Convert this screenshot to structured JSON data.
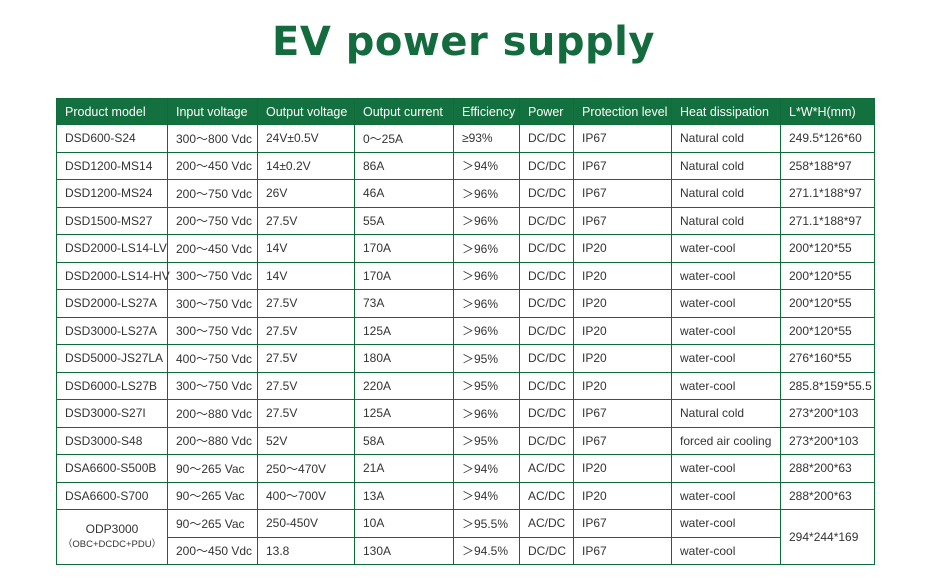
{
  "title": "EV power supply",
  "table": {
    "headers": [
      "Product model",
      "Input voltage",
      "Output voltage",
      "Output current",
      "Efficiency",
      "Power",
      "Protection level",
      "Heat dissipation",
      "L*W*H(mm)"
    ],
    "rows": [
      [
        "DSD600-S24",
        "300～800 Vdc",
        "24V±0.5V",
        "0～25A",
        "≥93%",
        "DC/DC",
        "IP67",
        "Natural cold",
        "249.5*126*60"
      ],
      [
        "DSD1200-MS14",
        "200～450 Vdc",
        "14±0.2V",
        "86A",
        "＞94%",
        "DC/DC",
        "IP67",
        "Natural cold",
        "258*188*97"
      ],
      [
        "DSD1200-MS24",
        "200～750 Vdc",
        "26V",
        "46A",
        "＞96%",
        "DC/DC",
        "IP67",
        "Natural cold",
        "271.1*188*97"
      ],
      [
        "DSD1500-MS27",
        "200～750 Vdc",
        "27.5V",
        "55A",
        "＞96%",
        "DC/DC",
        "IP67",
        "Natural cold",
        "271.1*188*97"
      ],
      [
        "DSD2000-LS14-LV",
        "200～450 Vdc",
        "14V",
        "170A",
        "＞96%",
        "DC/DC",
        "IP20",
        "water-cool",
        "200*120*55"
      ],
      [
        "DSD2000-LS14-HV",
        "300～750 Vdc",
        "14V",
        "170A",
        "＞96%",
        "DC/DC",
        "IP20",
        "water-cool",
        "200*120*55"
      ],
      [
        "DSD2000-LS27A",
        "300～750 Vdc",
        "27.5V",
        "73A",
        "＞96%",
        "DC/DC",
        "IP20",
        "water-cool",
        "200*120*55"
      ],
      [
        "DSD3000-LS27A",
        "300～750 Vdc",
        "27.5V",
        "125A",
        "＞96%",
        "DC/DC",
        "IP20",
        "water-cool",
        "200*120*55"
      ],
      [
        "DSD5000-JS27LA",
        "400～750 Vdc",
        "27.5V",
        "180A",
        "＞95%",
        "DC/DC",
        "IP20",
        "water-cool",
        "276*160*55"
      ],
      [
        "DSD6000-LS27B",
        "300～750 Vdc",
        "27.5V",
        "220A",
        "＞95%",
        "DC/DC",
        "IP20",
        "water-cool",
        "285.8*159*55.5"
      ],
      [
        "DSD3000-S27I",
        "200～880 Vdc",
        "27.5V",
        "125A",
        "＞96%",
        "DC/DC",
        "IP67",
        "Natural cold",
        "273*200*103"
      ],
      [
        "DSD3000-S48",
        "200～880 Vdc",
        "52V",
        "58A",
        "＞95%",
        "DC/DC",
        "IP67",
        "forced air cooling",
        "273*200*103"
      ],
      [
        "DSA6600-S500B",
        "90～265 Vac",
        "250～470V",
        "21A",
        "＞94%",
        "AC/DC",
        "IP20",
        "water-cool",
        "288*200*63"
      ],
      [
        "DSA6600-S700",
        "90～265 Vac",
        "400～700V",
        "13A",
        "＞94%",
        "AC/DC",
        "IP20",
        "water-cool",
        "288*200*63"
      ]
    ],
    "merged": {
      "model": "ODP3000",
      "model_sub": "（OBC+DCDC+PDU）",
      "dims": "294*244*169",
      "row_a": [
        "90～265 Vac",
        "250-450V",
        "10A",
        "＞95.5%",
        "AC/DC",
        "IP67",
        "water-cool"
      ],
      "row_b": [
        "200～450 Vdc",
        "13.8",
        "130A",
        "＞94.5%",
        "DC/DC",
        "IP67",
        "water-cool"
      ]
    }
  },
  "colors": {
    "brand_green": "#13703f",
    "title_green": "#136b3e"
  }
}
